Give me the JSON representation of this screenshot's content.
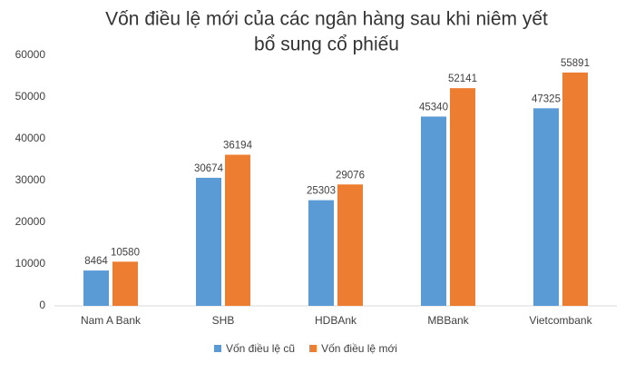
{
  "chart_data": {
    "type": "bar",
    "title": [
      "Vốn điều lệ mới của các ngân hàng sau khi niêm yết",
      "bổ sung cổ phiếu"
    ],
    "categories": [
      "Nam A Bank",
      "SHB",
      "HDBAnk",
      "MBBank",
      "Vietcombank"
    ],
    "series": [
      {
        "name": "Vốn điều lệ cũ",
        "color": "#5b9bd5",
        "values": [
          8464,
          30674,
          25303,
          45340,
          47325
        ]
      },
      {
        "name": "Vốn điều lệ mới",
        "color": "#ed7d31",
        "values": [
          10580,
          36194,
          29076,
          52141,
          55891
        ]
      }
    ],
    "ylim": [
      0,
      60000
    ],
    "yticks": [
      0,
      10000,
      20000,
      30000,
      40000,
      50000,
      60000
    ],
    "grid": false,
    "legend": "bottom"
  }
}
